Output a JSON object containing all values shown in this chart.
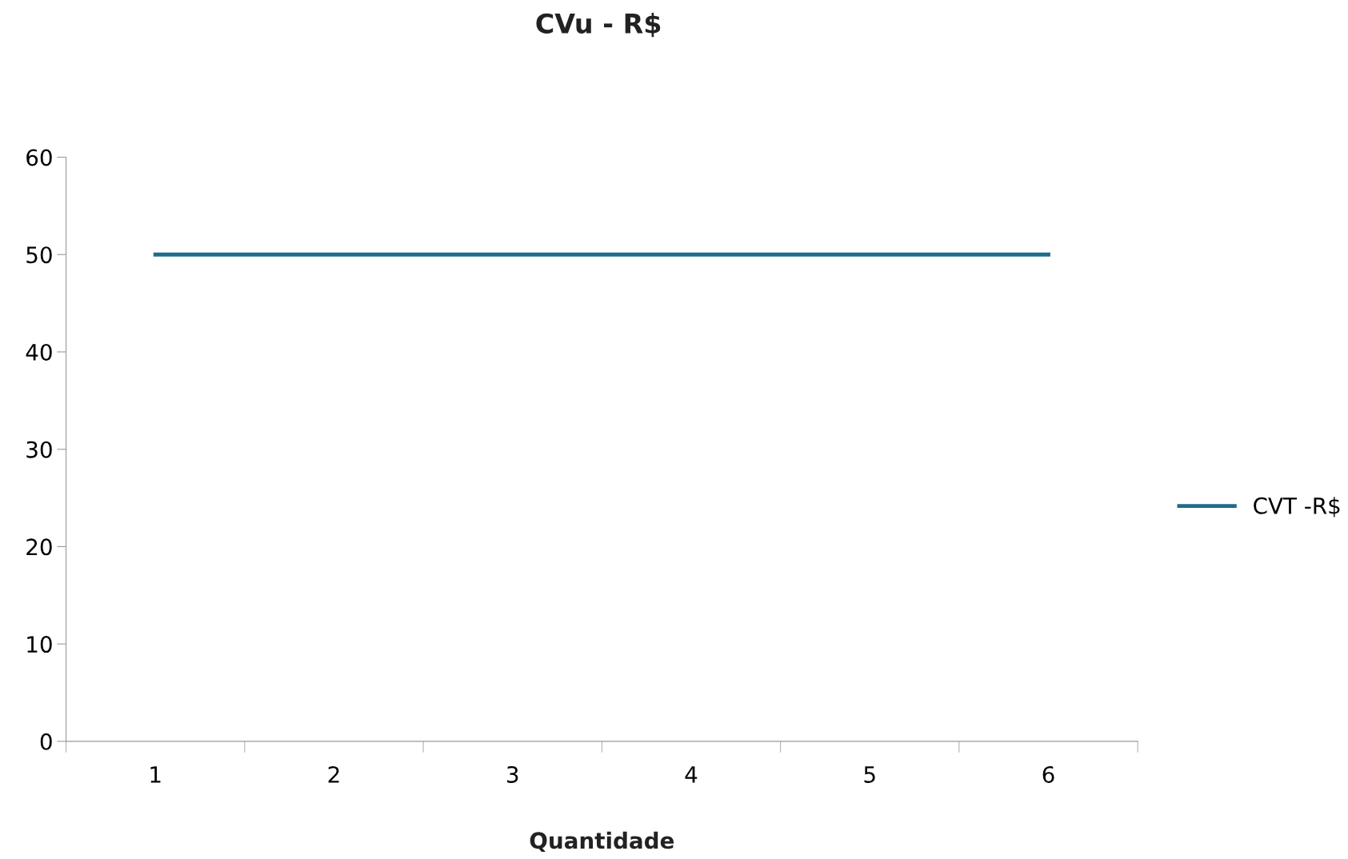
{
  "chart_data": {
    "type": "line",
    "title": "CVu - R$",
    "xlabel": "Quantidade",
    "categories": [
      "1",
      "2",
      "3",
      "4",
      "5",
      "6"
    ],
    "series": [
      {
        "name": "CVT -R$",
        "color": "#1f6b8a",
        "values": [
          50,
          50,
          50,
          50,
          50,
          50
        ]
      }
    ],
    "ylim": [
      0,
      60
    ],
    "yticks": [
      0,
      10,
      20,
      30,
      40,
      50,
      60
    ],
    "grid": false,
    "legend": "right",
    "marker": "none",
    "line_style": "solid"
  }
}
